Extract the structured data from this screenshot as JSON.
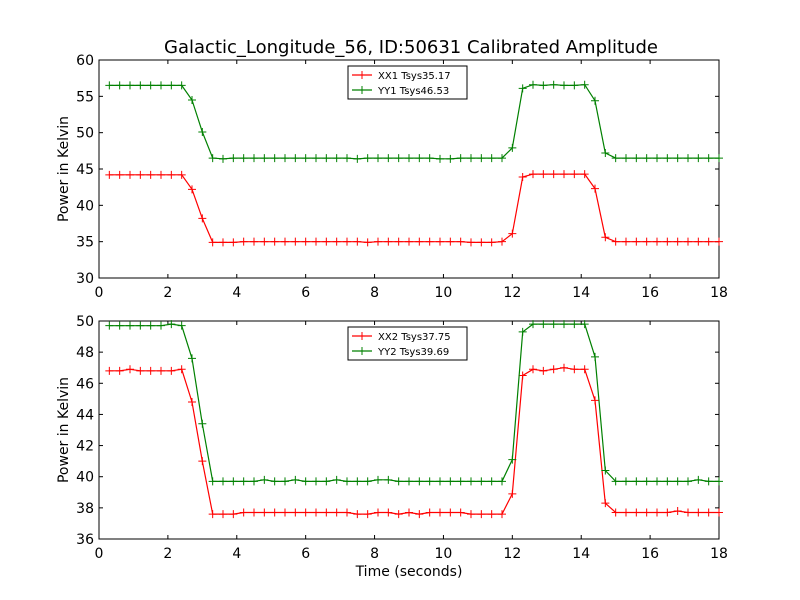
{
  "page": {
    "title": "Galactic_Longitude_56, ID:50631 Calibrated Amplitude"
  },
  "chart_data": [
    {
      "type": "line",
      "title": "Galactic_Longitude_56, ID:50631 Calibrated Amplitude",
      "xlabel": "",
      "ylabel": "Power in Kelvin",
      "xlim": [
        0,
        18
      ],
      "ylim": [
        30,
        60
      ],
      "xticks": [
        0,
        2,
        4,
        6,
        8,
        10,
        12,
        14,
        16,
        18
      ],
      "yticks": [
        30,
        35,
        40,
        45,
        50,
        55,
        60
      ],
      "legend_position": "upper center",
      "grid": false,
      "x": [
        0.3,
        0.6,
        0.9,
        1.2,
        1.5,
        1.8,
        2.1,
        2.4,
        2.7,
        3.0,
        3.3,
        3.6,
        3.9,
        4.2,
        4.5,
        4.8,
        5.1,
        5.4,
        5.7,
        6.0,
        6.3,
        6.6,
        6.9,
        7.2,
        7.5,
        7.8,
        8.1,
        8.4,
        8.7,
        9.0,
        9.3,
        9.6,
        9.9,
        10.2,
        10.5,
        10.8,
        11.1,
        11.4,
        11.7,
        12.0,
        12.3,
        12.6,
        12.9,
        13.2,
        13.5,
        13.8,
        14.1,
        14.4,
        14.7,
        15.0,
        15.3,
        15.6,
        15.9,
        16.2,
        16.5,
        16.8,
        17.1,
        17.4,
        17.7,
        18.0
      ],
      "series": [
        {
          "name": "XX1 Tsys35.17",
          "color": "#ff0000",
          "values": [
            44.2,
            44.2,
            44.2,
            44.2,
            44.2,
            44.2,
            44.2,
            44.2,
            42.2,
            38.2,
            34.9,
            34.9,
            34.9,
            35.0,
            35.0,
            35.0,
            35.0,
            35.0,
            35.0,
            35.0,
            35.0,
            35.0,
            35.0,
            35.0,
            35.0,
            34.9,
            35.0,
            35.0,
            35.0,
            35.0,
            35.0,
            35.0,
            35.0,
            35.0,
            35.0,
            34.9,
            34.9,
            34.9,
            35.0,
            36.1,
            43.9,
            44.3,
            44.3,
            44.3,
            44.3,
            44.3,
            44.3,
            42.3,
            35.6,
            35.0,
            35.0,
            35.0,
            35.0,
            35.0,
            35.0,
            35.0,
            35.0,
            35.0,
            35.0,
            35.0
          ]
        },
        {
          "name": "YY1 Tsys46.53",
          "color": "#008000",
          "values": [
            56.5,
            56.5,
            56.5,
            56.5,
            56.5,
            56.5,
            56.5,
            56.5,
            54.5,
            50.1,
            46.5,
            46.4,
            46.5,
            46.5,
            46.5,
            46.5,
            46.5,
            46.5,
            46.5,
            46.5,
            46.5,
            46.5,
            46.5,
            46.5,
            46.4,
            46.5,
            46.5,
            46.5,
            46.5,
            46.5,
            46.5,
            46.5,
            46.4,
            46.4,
            46.5,
            46.5,
            46.5,
            46.5,
            46.5,
            47.9,
            56.1,
            56.6,
            56.5,
            56.6,
            56.5,
            56.5,
            56.6,
            54.4,
            47.2,
            46.5,
            46.5,
            46.5,
            46.5,
            46.5,
            46.5,
            46.5,
            46.5,
            46.5,
            46.5,
            46.5
          ]
        }
      ]
    },
    {
      "type": "line",
      "title": "",
      "xlabel": "Time (seconds)",
      "ylabel": "Power in Kelvin",
      "xlim": [
        0,
        18
      ],
      "ylim": [
        36,
        50
      ],
      "xticks": [
        0,
        2,
        4,
        6,
        8,
        10,
        12,
        14,
        16,
        18
      ],
      "yticks": [
        36,
        38,
        40,
        42,
        44,
        46,
        48,
        50
      ],
      "legend_position": "upper center",
      "grid": false,
      "x": [
        0.3,
        0.6,
        0.9,
        1.2,
        1.5,
        1.8,
        2.1,
        2.4,
        2.7,
        3.0,
        3.3,
        3.6,
        3.9,
        4.2,
        4.5,
        4.8,
        5.1,
        5.4,
        5.7,
        6.0,
        6.3,
        6.6,
        6.9,
        7.2,
        7.5,
        7.8,
        8.1,
        8.4,
        8.7,
        9.0,
        9.3,
        9.6,
        9.9,
        10.2,
        10.5,
        10.8,
        11.1,
        11.4,
        11.7,
        12.0,
        12.3,
        12.6,
        12.9,
        13.2,
        13.5,
        13.8,
        14.1,
        14.4,
        14.7,
        15.0,
        15.3,
        15.6,
        15.9,
        16.2,
        16.5,
        16.8,
        17.1,
        17.4,
        17.7,
        18.0
      ],
      "series": [
        {
          "name": "XX2 Tsys37.75",
          "color": "#ff0000",
          "values": [
            46.8,
            46.8,
            46.9,
            46.8,
            46.8,
            46.8,
            46.8,
            46.9,
            44.8,
            41.0,
            37.6,
            37.6,
            37.6,
            37.7,
            37.7,
            37.7,
            37.7,
            37.7,
            37.7,
            37.7,
            37.7,
            37.7,
            37.7,
            37.7,
            37.6,
            37.6,
            37.7,
            37.7,
            37.6,
            37.7,
            37.6,
            37.7,
            37.7,
            37.7,
            37.7,
            37.6,
            37.6,
            37.6,
            37.6,
            38.9,
            46.5,
            46.9,
            46.8,
            46.9,
            47.0,
            46.9,
            46.9,
            44.9,
            38.3,
            37.7,
            37.7,
            37.7,
            37.7,
            37.7,
            37.7,
            37.8,
            37.7,
            37.7,
            37.7,
            37.7
          ]
        },
        {
          "name": "YY2 Tsys39.69",
          "color": "#008000",
          "values": [
            49.7,
            49.7,
            49.7,
            49.7,
            49.7,
            49.7,
            49.8,
            49.7,
            47.6,
            43.4,
            39.7,
            39.7,
            39.7,
            39.7,
            39.7,
            39.8,
            39.7,
            39.7,
            39.8,
            39.7,
            39.7,
            39.7,
            39.8,
            39.7,
            39.7,
            39.7,
            39.8,
            39.8,
            39.7,
            39.7,
            39.7,
            39.7,
            39.7,
            39.7,
            39.7,
            39.7,
            39.7,
            39.7,
            39.7,
            41.1,
            49.3,
            49.8,
            49.8,
            49.8,
            49.8,
            49.8,
            49.8,
            47.7,
            40.4,
            39.7,
            39.7,
            39.7,
            39.7,
            39.7,
            39.7,
            39.7,
            39.7,
            39.8,
            39.7,
            39.7
          ]
        }
      ]
    }
  ]
}
